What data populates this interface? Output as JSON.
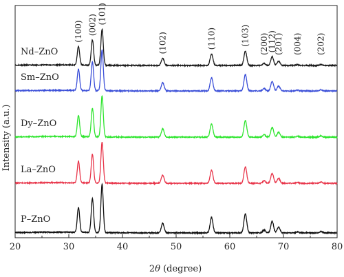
{
  "chart_data": {
    "type": "line",
    "xlabel_theta": "θ",
    "xlabel_prefix": "2",
    "xlabel_suffix": " (degree)",
    "ylabel": "Intensity (a.u.)",
    "xlim": [
      20,
      80
    ],
    "x_ticks": [
      "20",
      "30",
      "40",
      "50",
      "60",
      "70",
      "80"
    ],
    "grid": false,
    "legend": "none",
    "series": [
      {
        "name": "Nd–ZnO",
        "color": "#1a1a1a",
        "offset": 4,
        "peak_scale": 0.75
      },
      {
        "name": "Sm–ZnO",
        "color": "#3b4fd8",
        "offset": 3,
        "peak_scale": 0.85
      },
      {
        "name": "Dy–ZnO",
        "color": "#2ee52e",
        "offset": 2,
        "peak_scale": 0.85
      },
      {
        "name": "La–ZnO",
        "color": "#e8354a",
        "offset": 1,
        "peak_scale": 0.85
      },
      {
        "name": "P–ZnO",
        "color": "#111111",
        "offset": 0,
        "peak_scale": 1.0
      }
    ],
    "peaks": [
      {
        "label": "(100)",
        "x": 31.8,
        "rel": 0.52
      },
      {
        "label": "(002)",
        "x": 34.4,
        "rel": 0.7
      },
      {
        "label": "(101)",
        "x": 36.2,
        "rel": 1.0
      },
      {
        "label": "(102)",
        "x": 47.5,
        "rel": 0.2
      },
      {
        "label": "(110)",
        "x": 56.6,
        "rel": 0.32
      },
      {
        "label": "(103)",
        "x": 62.9,
        "rel": 0.4
      },
      {
        "label": "(200)",
        "x": 66.4,
        "rel": 0.06
      },
      {
        "label": "(112)",
        "x": 67.9,
        "rel": 0.24
      },
      {
        "label": "(201)",
        "x": 69.1,
        "rel": 0.12
      },
      {
        "label": "(004)",
        "x": 72.6,
        "rel": 0.02
      },
      {
        "label": "(202)",
        "x": 77.0,
        "rel": 0.03
      }
    ]
  }
}
